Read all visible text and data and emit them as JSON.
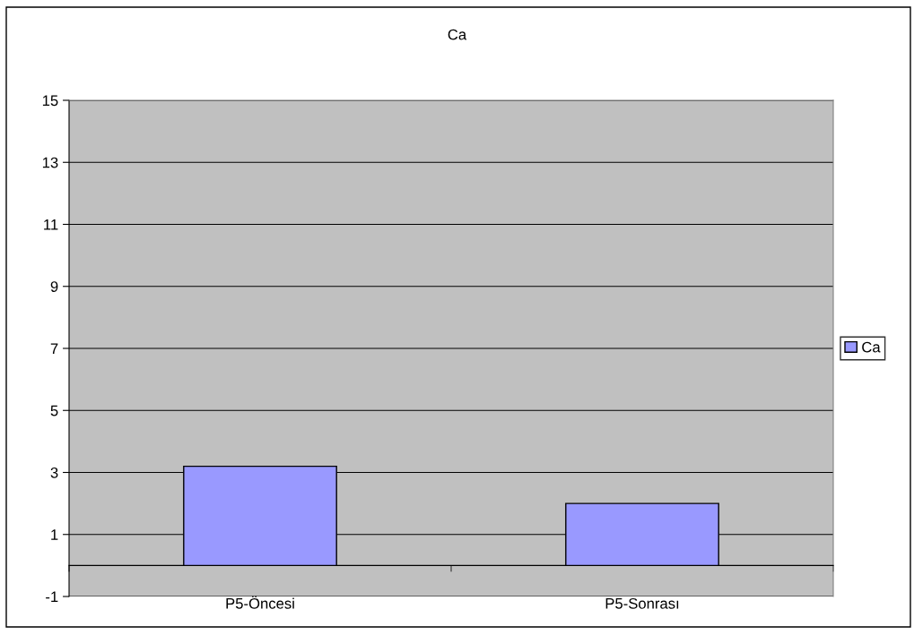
{
  "chart_data": {
    "type": "bar",
    "title": "Ca",
    "categories": [
      "P5-Öncesi",
      "P5-Sonrası"
    ],
    "series": [
      {
        "name": "Ca",
        "color": "#9999ff",
        "values": [
          3.2,
          2.0
        ]
      }
    ],
    "ylim": [
      -1,
      15
    ],
    "yticks": [
      -1,
      1,
      3,
      5,
      7,
      9,
      11,
      13,
      15
    ],
    "grid": "y",
    "legend": "right"
  }
}
